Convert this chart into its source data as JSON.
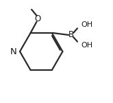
{
  "bg_color": "#ffffff",
  "line_color": "#2a2a2a",
  "line_width": 1.6,
  "font_size": 8.5,
  "font_color": "#1a1a1a",
  "N_label": "N",
  "B_label": "B",
  "O_label": "O",
  "OH1_label": "OH",
  "OH2_label": "OH"
}
